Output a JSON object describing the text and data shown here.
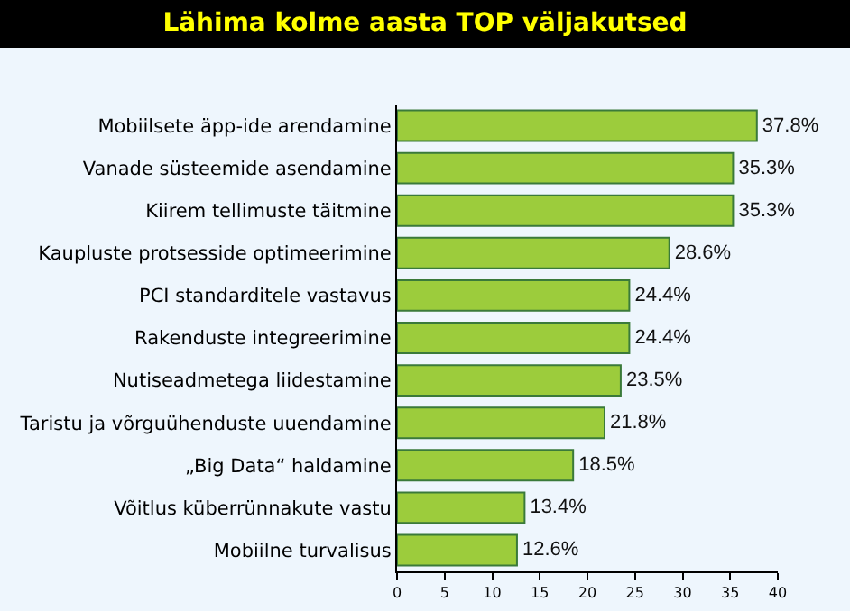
{
  "chart_data": {
    "type": "bar",
    "orientation": "horizontal",
    "title": "Lähima kolme aasta TOP väljakutsed",
    "categories": [
      "Mobiilsete äpp-ide arendamine",
      "Vanade süsteemide asendamine",
      "Kiirem tellimuste täitmine",
      "Kaupluste protsesside optimeerimine",
      "PCI standarditele vastavus",
      "Rakenduste integreerimine",
      "Nutiseadmetega liidestamine",
      "Taristu ja võrguühenduste uuendamine",
      "„Big Data“ haldamine",
      "Võitlus küberrünnakute vastu",
      "Mobiilne turvalisus"
    ],
    "values": [
      37.8,
      35.3,
      35.3,
      28.6,
      24.4,
      24.4,
      23.5,
      21.8,
      18.5,
      13.4,
      12.6
    ],
    "value_labels": [
      "37.8%",
      "35.3%",
      "35.3%",
      "28.6%",
      "24.4%",
      "24.4%",
      "23.5%",
      "21.8%",
      "18.5%",
      "13.4%",
      "12.6%"
    ],
    "color": "#9ccc3c",
    "xlim": [
      0,
      40
    ],
    "xticks": [
      0,
      5,
      10,
      15,
      20,
      25,
      30,
      35,
      40
    ],
    "grid": false,
    "legend": false
  }
}
